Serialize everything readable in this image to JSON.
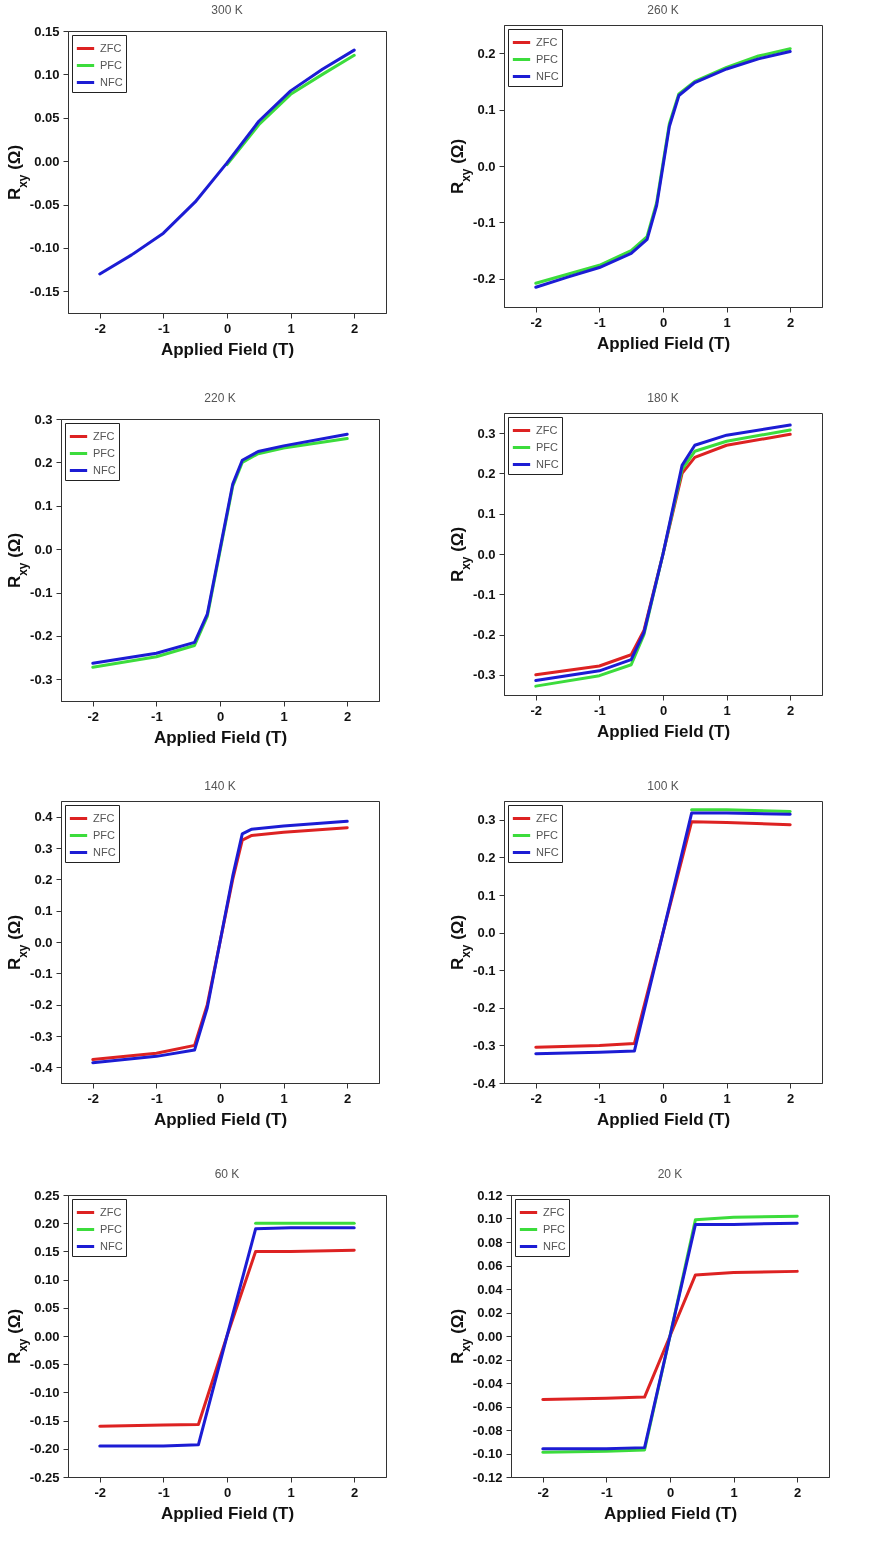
{
  "chart_data": [
    {
      "type": "line",
      "title": "300 K",
      "xlabel": "Applied Field (T)",
      "ylabel": "R$_{xy}$ (Ω)",
      "legend": "top left",
      "x": [
        -2,
        -1.5,
        -1,
        -0.5,
        0,
        0.5,
        1,
        1.5,
        2
      ],
      "xlim": [
        -2.5,
        2.5
      ],
      "xticks": [
        -2,
        -1,
        0,
        1,
        2
      ],
      "ylim": [
        -0.175,
        0.15
      ],
      "yticks": [
        -0.15,
        {
          "value": -0.1,
          "label": "-0.10"
        },
        -0.05,
        {
          "value": 0,
          "label": "0.00"
        },
        0.05,
        {
          "value": 0.1,
          "label": "0.10"
        },
        0.15
      ],
      "series": [
        {
          "name": "ZFC",
          "color": "#dd2222",
          "values": [
            null,
            null,
            null,
            null,
            null,
            null,
            null,
            null,
            null
          ]
        },
        {
          "name": "PFC",
          "color": "#3cdc3c",
          "values": [
            null,
            null,
            null,
            null,
            -0.004,
            0.042,
            0.077,
            0.1,
            0.122
          ]
        },
        {
          "name": "NFC",
          "color": "#1c1cd4",
          "values": [
            -0.13,
            -0.108,
            -0.083,
            -0.047,
            -0.002,
            0.046,
            0.081,
            0.106,
            0.128
          ]
        }
      ]
    },
    {
      "type": "line",
      "title": "260 K",
      "xlabel": "Applied Field (T)",
      "ylabel": "R$_{xy}$ (Ω)",
      "legend": "top left",
      "x": [
        -2,
        -1.5,
        -1,
        -0.5,
        -0.25,
        -0.1,
        0,
        0.1,
        0.25,
        0.5,
        1,
        1.5,
        2
      ],
      "xlim": [
        -2.5,
        2.5
      ],
      "xticks": [
        -2,
        -1,
        0,
        1,
        2
      ],
      "ylim": [
        -0.25,
        0.25
      ],
      "yticks": [
        -0.2,
        -0.1,
        {
          "value": 0,
          "label": "0.0"
        },
        0.1,
        0.2
      ],
      "series": [
        {
          "name": "ZFC",
          "color": "#dd2222",
          "values": [
            null,
            null,
            null,
            null,
            null,
            null,
            null,
            null,
            null,
            null,
            null,
            null,
            null
          ]
        },
        {
          "name": "PFC",
          "color": "#3cdc3c",
          "values": [
            -0.208,
            -0.192,
            -0.176,
            -0.15,
            -0.125,
            -0.065,
            0.005,
            0.075,
            0.128,
            0.15,
            0.175,
            0.195,
            0.208
          ]
        },
        {
          "name": "NFC",
          "color": "#1c1cd4",
          "values": [
            -0.215,
            -0.197,
            -0.18,
            -0.155,
            -0.13,
            -0.07,
            0,
            0.07,
            0.125,
            0.148,
            0.172,
            0.19,
            0.203
          ]
        }
      ]
    },
    {
      "type": "line",
      "title": "220 K",
      "xlabel": "Applied Field (T)",
      "ylabel": "R$_{xy}$ (Ω)",
      "legend": "top left",
      "x": [
        -2,
        -1,
        -0.4,
        -0.2,
        0,
        0.2,
        0.35,
        0.6,
        1,
        2
      ],
      "xlim": [
        -2.5,
        2.5
      ],
      "xticks": [
        -2,
        -1,
        0,
        1,
        2
      ],
      "ylim": [
        -0.35,
        0.3
      ],
      "yticks": [
        -0.3,
        -0.2,
        -0.1,
        {
          "value": 0,
          "label": "0.0"
        },
        0.1,
        0.2,
        0.3
      ],
      "series": [
        {
          "name": "ZFC",
          "color": "#dd2222",
          "values": [
            null,
            null,
            null,
            null,
            null,
            null,
            null,
            null,
            null,
            null
          ]
        },
        {
          "name": "PFC",
          "color": "#3cdc3c",
          "values": [
            -0.272,
            -0.248,
            -0.222,
            -0.155,
            -0.005,
            0.145,
            0.2,
            0.22,
            0.233,
            0.255
          ]
        },
        {
          "name": "NFC",
          "color": "#1c1cd4",
          "values": [
            -0.263,
            -0.24,
            -0.215,
            -0.15,
            0,
            0.15,
            0.205,
            0.225,
            0.238,
            0.265
          ]
        }
      ]
    },
    {
      "type": "line",
      "title": "180 K",
      "xlabel": "Applied Field (T)",
      "ylabel": "R$_{xy}$ (Ω)",
      "legend": "top left",
      "x": [
        -2,
        -1,
        -0.5,
        -0.3,
        0,
        0.3,
        0.5,
        1,
        2
      ],
      "xlim": [
        -2.5,
        2.5
      ],
      "xticks": [
        -2,
        -1,
        0,
        1,
        2
      ],
      "ylim": [
        -0.35,
        0.35
      ],
      "yticks": [
        -0.3,
        -0.2,
        -0.1,
        {
          "value": 0,
          "label": "0.0"
        },
        0.1,
        0.2,
        0.3
      ],
      "series": [
        {
          "name": "ZFC",
          "color": "#dd2222",
          "values": [
            -0.3,
            -0.278,
            -0.25,
            -0.19,
            0,
            0.2,
            0.24,
            0.27,
            0.297
          ]
        },
        {
          "name": "PFC",
          "color": "#3cdc3c",
          "values": [
            -0.328,
            -0.302,
            -0.275,
            -0.2,
            0,
            0.21,
            0.255,
            0.28,
            0.308
          ]
        },
        {
          "name": "NFC",
          "color": "#1c1cd4",
          "values": [
            -0.314,
            -0.29,
            -0.262,
            -0.195,
            0,
            0.22,
            0.27,
            0.295,
            0.32
          ]
        }
      ]
    },
    {
      "type": "line",
      "title": "140 K",
      "xlabel": "Applied Field (T)",
      "ylabel": "R$_{xy}$ (Ω)",
      "legend": "top left",
      "x": [
        -2,
        -1,
        -0.4,
        -0.2,
        0,
        0.2,
        0.35,
        0.5,
        1,
        2
      ],
      "xlim": [
        -2.5,
        2.5
      ],
      "xticks": [
        -2,
        -1,
        0,
        1,
        2
      ],
      "ylim": [
        -0.45,
        0.45
      ],
      "yticks": [
        -0.4,
        -0.3,
        -0.2,
        -0.1,
        {
          "value": 0,
          "label": "0.0"
        },
        0.1,
        0.2,
        0.3,
        0.4
      ],
      "series": [
        {
          "name": "ZFC",
          "color": "#dd2222",
          "values": [
            -0.375,
            -0.355,
            -0.33,
            -0.2,
            0,
            0.2,
            0.325,
            0.34,
            0.35,
            0.365
          ]
        },
        {
          "name": "PFC",
          "color": "#3cdc3c",
          "values": [
            null,
            null,
            null,
            null,
            null,
            null,
            null,
            null,
            null,
            null
          ]
        },
        {
          "name": "NFC",
          "color": "#1c1cd4",
          "values": [
            -0.385,
            -0.365,
            -0.345,
            -0.21,
            0,
            0.21,
            0.345,
            0.36,
            0.37,
            0.385
          ]
        }
      ]
    },
    {
      "type": "line",
      "title": "100 K",
      "xlabel": "Applied Field (T)",
      "ylabel": "R$_{xy}$ (Ω)",
      "legend": "top left",
      "x": [
        -2,
        -1,
        -0.45,
        0,
        0.45,
        1,
        2
      ],
      "xlim": [
        -2.5,
        2.5
      ],
      "xticks": [
        -2,
        -1,
        0,
        1,
        2
      ],
      "ylim": [
        -0.4,
        0.35
      ],
      "yticks": [
        -0.4,
        -0.3,
        -0.2,
        -0.1,
        {
          "value": 0,
          "label": "0.0"
        },
        0.1,
        0.2,
        0.3
      ],
      "series": [
        {
          "name": "ZFC",
          "color": "#dd2222",
          "values": [
            -0.305,
            -0.3,
            -0.295,
            0,
            0.295,
            0.293,
            0.287
          ]
        },
        {
          "name": "PFC",
          "color": "#3cdc3c",
          "values": [
            null,
            null,
            null,
            null,
            0.327,
            0.327,
            0.322
          ]
        },
        {
          "name": "NFC",
          "color": "#1c1cd4",
          "values": [
            -0.322,
            -0.318,
            -0.315,
            0,
            0.318,
            0.318,
            0.315
          ]
        }
      ]
    },
    {
      "type": "line",
      "title": "60 K",
      "xlabel": "Applied Field (T)",
      "ylabel": "R$_{xy}$ (Ω)",
      "legend": "top left",
      "x": [
        -2,
        -1,
        -0.45,
        0,
        0.45,
        1,
        2
      ],
      "xlim": [
        -2.5,
        2.5
      ],
      "xticks": [
        -2,
        -1,
        0,
        1,
        2
      ],
      "ylim": [
        -0.25,
        0.25
      ],
      "yticks": [
        -0.25,
        {
          "value": -0.2,
          "label": "-0.20"
        },
        -0.15,
        {
          "value": -0.1,
          "label": "-0.10"
        },
        -0.05,
        {
          "value": 0,
          "label": "0.00"
        },
        0.05,
        {
          "value": 0.1,
          "label": "0.10"
        },
        0.15,
        {
          "value": 0.2,
          "label": "0.20"
        },
        0.25
      ],
      "series": [
        {
          "name": "ZFC",
          "color": "#dd2222",
          "values": [
            -0.16,
            -0.158,
            -0.157,
            0,
            0.15,
            0.15,
            0.152
          ]
        },
        {
          "name": "PFC",
          "color": "#3cdc3c",
          "values": [
            null,
            null,
            null,
            null,
            0.2,
            0.2,
            0.2
          ]
        },
        {
          "name": "NFC",
          "color": "#1c1cd4",
          "values": [
            -0.195,
            -0.195,
            -0.193,
            0,
            0.19,
            0.192,
            0.192
          ]
        }
      ]
    },
    {
      "type": "line",
      "title": "20 K",
      "xlabel": "Applied Field (T)",
      "ylabel": "R$_{xy}$ (Ω)",
      "legend": "top left",
      "x": [
        -2,
        -1,
        -0.4,
        0,
        0.4,
        1,
        2
      ],
      "xlim": [
        -2.5,
        2.5
      ],
      "xticks": [
        -2,
        -1,
        0,
        1,
        2
      ],
      "ylim": [
        -0.12,
        0.12
      ],
      "yticks": [
        -0.12,
        {
          "value": -0.1,
          "label": "-0.10"
        },
        -0.08,
        -0.06,
        -0.04,
        -0.02,
        {
          "value": 0,
          "label": "0.00"
        },
        0.02,
        0.04,
        0.06,
        0.08,
        {
          "value": 0.1,
          "label": "0.10"
        },
        0.12
      ],
      "series": [
        {
          "name": "ZFC",
          "color": "#dd2222",
          "values": [
            -0.054,
            -0.053,
            -0.052,
            0,
            0.052,
            0.054,
            0.055
          ]
        },
        {
          "name": "PFC",
          "color": "#3cdc3c",
          "values": [
            -0.099,
            -0.098,
            -0.097,
            0,
            0.099,
            0.101,
            0.102
          ]
        },
        {
          "name": "NFC",
          "color": "#1c1cd4",
          "values": [
            -0.096,
            -0.096,
            -0.095,
            0,
            0.095,
            0.095,
            0.096
          ]
        }
      ]
    }
  ]
}
